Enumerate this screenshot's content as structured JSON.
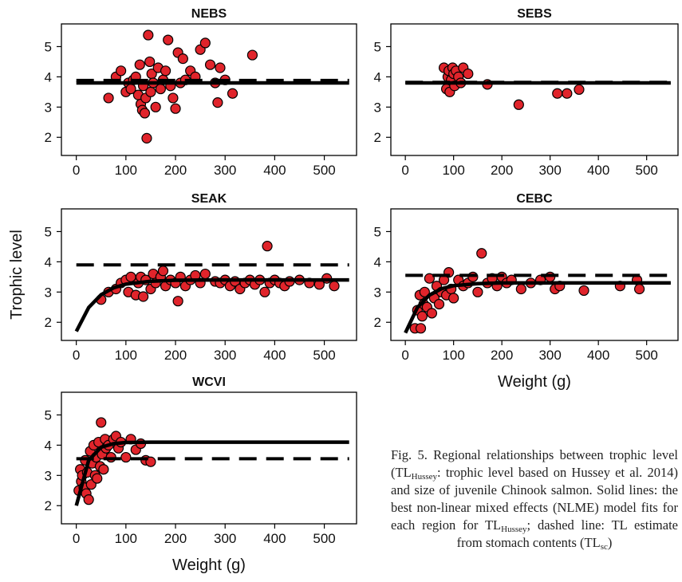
{
  "chart_data": [
    {
      "type": "scatter",
      "title": "NEBS",
      "xlim": [
        -30,
        565
      ],
      "ylim": [
        1.4,
        5.75
      ],
      "xticks": [
        0,
        100,
        200,
        300,
        400,
        500
      ],
      "yticks": [
        2,
        3,
        4,
        5
      ],
      "series": [
        {
          "style": "points",
          "color": "#e0242b",
          "x": [
            65,
            80,
            90,
            100,
            105,
            110,
            115,
            120,
            125,
            128,
            130,
            133,
            135,
            138,
            140,
            142,
            145,
            148,
            150,
            152,
            155,
            160,
            165,
            170,
            175,
            180,
            185,
            190,
            195,
            200,
            205,
            210,
            215,
            220,
            230,
            240,
            250,
            260,
            270,
            280,
            285,
            290,
            300,
            315,
            355
          ],
          "values": [
            3.3,
            4.0,
            4.2,
            3.5,
            3.8,
            3.6,
            3.9,
            4.0,
            3.4,
            4.4,
            3.1,
            2.9,
            3.7,
            2.8,
            3.3,
            1.97,
            5.38,
            4.5,
            3.5,
            4.1,
            3.8,
            3.0,
            4.3,
            3.6,
            3.9,
            4.2,
            5.22,
            3.7,
            3.3,
            2.95,
            4.8,
            3.8,
            4.6,
            3.9,
            4.2,
            4.0,
            4.9,
            5.12,
            4.4,
            3.8,
            3.15,
            4.3,
            3.9,
            3.45,
            4.72
          ]
        },
        {
          "style": "solid",
          "x": [
            0,
            550
          ],
          "values": [
            3.8,
            3.8
          ]
        },
        {
          "style": "dashed",
          "x": [
            0,
            550
          ],
          "values": [
            3.88,
            3.88
          ]
        }
      ]
    },
    {
      "type": "scatter",
      "title": "SEBS",
      "xlim": [
        -30,
        565
      ],
      "ylim": [
        1.4,
        5.75
      ],
      "xticks": [
        0,
        100,
        200,
        300,
        400,
        500
      ],
      "yticks": [
        2,
        3,
        4,
        5
      ],
      "series": [
        {
          "style": "points",
          "color": "#e0242b",
          "x": [
            80,
            85,
            88,
            90,
            92,
            95,
            98,
            100,
            102,
            105,
            110,
            115,
            120,
            130,
            170,
            235,
            315,
            335,
            360
          ],
          "values": [
            4.3,
            3.6,
            4.0,
            4.2,
            3.5,
            3.9,
            4.3,
            4.1,
            3.7,
            4.2,
            4.0,
            3.8,
            4.3,
            4.1,
            3.75,
            3.08,
            3.45,
            3.45,
            3.58
          ]
        },
        {
          "style": "solid",
          "x": [
            0,
            550
          ],
          "values": [
            3.8,
            3.8
          ]
        },
        {
          "style": "dashed",
          "x": [
            0,
            550
          ],
          "values": [
            3.82,
            3.82
          ]
        }
      ]
    },
    {
      "type": "scatter",
      "title": "SEAK",
      "ylabel": "Trophic level",
      "xlim": [
        -30,
        565
      ],
      "ylim": [
        1.4,
        5.75
      ],
      "xticks": [
        0,
        100,
        200,
        300,
        400,
        500
      ],
      "yticks": [
        2,
        3,
        4,
        5
      ],
      "series": [
        {
          "style": "points",
          "color": "#e0242b",
          "x": [
            50,
            65,
            80,
            90,
            100,
            105,
            110,
            120,
            125,
            130,
            135,
            140,
            150,
            155,
            160,
            170,
            175,
            180,
            190,
            200,
            205,
            210,
            220,
            230,
            240,
            250,
            260,
            280,
            290,
            300,
            310,
            320,
            330,
            340,
            350,
            360,
            370,
            380,
            385,
            390,
            400,
            410,
            420,
            430,
            450,
            470,
            490,
            505,
            520
          ],
          "values": [
            2.75,
            3.0,
            3.1,
            3.3,
            3.4,
            3.0,
            3.5,
            2.9,
            3.3,
            3.5,
            2.85,
            3.4,
            3.1,
            3.6,
            3.3,
            3.5,
            3.7,
            3.2,
            3.4,
            3.3,
            2.7,
            3.5,
            3.2,
            3.4,
            3.55,
            3.3,
            3.6,
            3.35,
            3.3,
            3.4,
            3.2,
            3.35,
            3.1,
            3.3,
            3.4,
            3.25,
            3.4,
            3.0,
            4.52,
            3.3,
            3.4,
            3.3,
            3.2,
            3.35,
            3.4,
            3.3,
            3.25,
            3.45,
            3.2
          ]
        },
        {
          "style": "solid",
          "x": [
            0,
            25,
            50,
            75,
            100,
            150,
            200,
            300,
            400,
            550
          ],
          "values": [
            1.7,
            2.49,
            2.91,
            3.14,
            3.26,
            3.36,
            3.39,
            3.4,
            3.4,
            3.4
          ]
        },
        {
          "style": "dashed",
          "x": [
            0,
            550
          ],
          "values": [
            3.9,
            3.9
          ]
        }
      ]
    },
    {
      "type": "scatter",
      "title": "CEBC",
      "xlabel": "Weight (g)",
      "xlim": [
        -30,
        565
      ],
      "ylim": [
        1.4,
        5.75
      ],
      "xticks": [
        0,
        100,
        200,
        300,
        400,
        500
      ],
      "yticks": [
        2,
        3,
        4,
        5
      ],
      "series": [
        {
          "style": "points",
          "color": "#e0242b",
          "x": [
            20,
            25,
            30,
            32,
            35,
            38,
            40,
            45,
            50,
            55,
            60,
            65,
            70,
            75,
            80,
            85,
            90,
            95,
            100,
            110,
            120,
            130,
            140,
            150,
            158,
            170,
            180,
            190,
            200,
            210,
            220,
            240,
            260,
            280,
            300,
            310,
            320,
            370,
            445,
            480,
            485
          ],
          "values": [
            1.8,
            2.4,
            2.9,
            1.8,
            2.2,
            2.6,
            3.0,
            2.5,
            3.45,
            2.3,
            2.8,
            3.2,
            2.6,
            3.0,
            3.4,
            2.9,
            3.65,
            3.1,
            2.8,
            3.4,
            3.2,
            3.3,
            3.5,
            3.0,
            4.28,
            3.3,
            3.45,
            3.2,
            3.5,
            3.3,
            3.4,
            3.1,
            3.3,
            3.4,
            3.5,
            3.1,
            3.2,
            3.05,
            3.2,
            3.4,
            3.1
          ]
        },
        {
          "style": "solid",
          "x": [
            0,
            25,
            50,
            75,
            100,
            150,
            200,
            300,
            400,
            550
          ],
          "values": [
            1.65,
            2.49,
            2.9,
            3.11,
            3.21,
            3.28,
            3.3,
            3.3,
            3.3,
            3.3
          ]
        },
        {
          "style": "dashed",
          "x": [
            0,
            550
          ],
          "values": [
            3.55,
            3.55
          ]
        }
      ]
    },
    {
      "type": "scatter",
      "title": "WCVI",
      "xlabel": "Weight (g)",
      "xlim": [
        -30,
        565
      ],
      "ylim": [
        1.4,
        5.75
      ],
      "xticks": [
        0,
        100,
        200,
        300,
        400,
        500
      ],
      "yticks": [
        2,
        3,
        4,
        5
      ],
      "series": [
        {
          "style": "points",
          "color": "#e0242b",
          "x": [
            5,
            8,
            10,
            12,
            15,
            18,
            20,
            22,
            25,
            28,
            30,
            32,
            35,
            38,
            40,
            42,
            45,
            48,
            50,
            52,
            55,
            58,
            60,
            65,
            70,
            75,
            80,
            85,
            90,
            100,
            110,
            120,
            130,
            140,
            150
          ],
          "values": [
            2.5,
            3.2,
            2.8,
            3.0,
            2.6,
            3.5,
            2.4,
            3.1,
            2.2,
            3.8,
            2.7,
            3.4,
            4.0,
            3.0,
            3.6,
            2.9,
            4.1,
            3.3,
            4.75,
            3.7,
            3.2,
            4.2,
            3.9,
            4.0,
            3.6,
            4.2,
            4.3,
            3.9,
            4.1,
            3.6,
            4.2,
            3.85,
            4.05,
            3.5,
            3.45
          ]
        },
        {
          "style": "solid",
          "x": [
            0,
            25,
            50,
            75,
            100,
            150,
            200,
            300,
            400,
            550
          ],
          "values": [
            2.0,
            3.5,
            3.93,
            4.05,
            4.09,
            4.1,
            4.1,
            4.1,
            4.1,
            4.1
          ]
        },
        {
          "style": "dashed",
          "x": [
            0,
            550
          ],
          "values": [
            3.55,
            3.55
          ]
        }
      ]
    }
  ],
  "caption": [
    {
      "text": "Fig. 5. Regional relationships between trophic level (TL"
    },
    {
      "sub": "Hussey"
    },
    {
      "text": ": trophic level based on Hussey et al. 2014) and size of juvenile Chinook salmon. Solid lines: the best non-linear mixed effects (NLME) model fits for each region for TL"
    },
    {
      "sub": "Hussey"
    },
    {
      "text": "; dashed line: TL estimate from stomach contents (TL"
    },
    {
      "sub": "sc"
    },
    {
      "text": ")"
    }
  ]
}
